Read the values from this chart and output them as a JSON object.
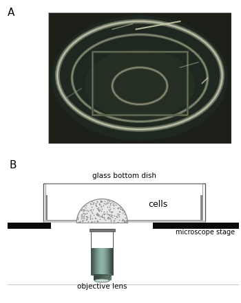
{
  "bg_color": "#ffffff",
  "label_A": "A",
  "label_B": "B",
  "photo_bg": "#1a1f18",
  "photo_border": "#888888",
  "dish_rim_color": "#9a9a80",
  "dish_inner_color": "#787860",
  "label_glass_bottom_dish": "glass bottom dish",
  "label_cells": "cells",
  "label_microscope_stage": "microscope stage",
  "label_objective_lens": "objective lens",
  "stage_color": "#111111",
  "wall_color": "#777777",
  "lens_mid_color": "#507060",
  "lens_light_color": "#c8d8cc",
  "lens_dark_color": "#203828"
}
